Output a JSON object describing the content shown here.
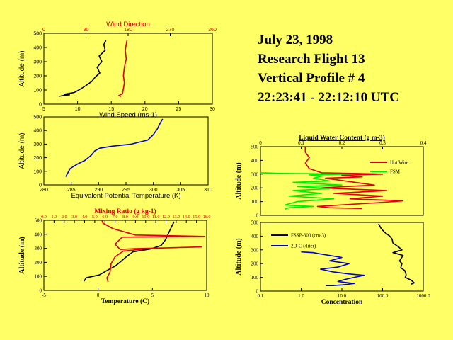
{
  "header": {
    "date": "July 23, 1998",
    "flight": "Research Flight 13",
    "profile": "Vertical Profile # 4",
    "time": "22:23:41 - 22:12:10 UTC"
  },
  "chart_data": [
    {
      "id": "wind",
      "type": "line",
      "title": "Wind Direction",
      "xlabel": "Wind Speed (ms-1)",
      "ylabel": "Altitude (m)",
      "xlim": [
        5,
        30
      ],
      "x_ticks": [
        "5",
        "10",
        "15",
        "20",
        "25",
        "30"
      ],
      "x2lim": [
        0,
        360
      ],
      "x2_ticks": [
        "0",
        "90",
        "180",
        "270",
        "360"
      ],
      "ylim": [
        0,
        500
      ],
      "y_ticks": [
        "0",
        "100",
        "200",
        "300",
        "400",
        "500"
      ],
      "series": [
        {
          "name": "Wind Speed",
          "color": "#000000",
          "axis": "x",
          "points": [
            [
              7.2,
              55
            ],
            [
              8.0,
              62
            ],
            [
              8.8,
              66
            ],
            [
              8.0,
              70
            ],
            [
              9.5,
              82
            ],
            [
              10.2,
              100
            ],
            [
              11.2,
              130
            ],
            [
              12.1,
              160
            ],
            [
              12.6,
              190
            ],
            [
              13.3,
              220
            ],
            [
              12.9,
              260
            ],
            [
              13.6,
              300
            ],
            [
              13.2,
              340
            ],
            [
              14.1,
              380
            ],
            [
              13.9,
              420
            ],
            [
              14.2,
              450
            ]
          ]
        },
        {
          "name": "Wind Direction",
          "color": "#dd0000",
          "axis": "x2",
          "points": [
            [
              165,
              55
            ],
            [
              160,
              60
            ],
            [
              168,
              75
            ],
            [
              170,
              110
            ],
            [
              172,
              150
            ],
            [
              170,
              200
            ],
            [
              172,
              260
            ],
            [
              176,
              320
            ],
            [
              174,
              380
            ],
            [
              177,
              440
            ],
            [
              178,
              455
            ]
          ]
        }
      ]
    },
    {
      "id": "theta",
      "type": "line",
      "xlabel": "Equivalent Potential Temperature (K)",
      "ylabel": "Altitude (m)",
      "xlim": [
        280,
        310
      ],
      "x_ticks": [
        "280",
        "285",
        "290",
        "295",
        "300",
        "305",
        "310"
      ],
      "ylim": [
        0,
        500
      ],
      "y_ticks": [
        "0",
        "100",
        "200",
        "300",
        "400",
        "500"
      ],
      "series": [
        {
          "name": "Theta-e",
          "color": "#0000cc",
          "points": [
            [
              284.0,
              60
            ],
            [
              284.4,
              90
            ],
            [
              284.8,
              120
            ],
            [
              286.0,
              150
            ],
            [
              287.5,
              180
            ],
            [
              288.7,
              220
            ],
            [
              289.3,
              250
            ],
            [
              290.2,
              270
            ],
            [
              292.5,
              285
            ],
            [
              296.0,
              300
            ],
            [
              299.0,
              330
            ],
            [
              300.0,
              370
            ],
            [
              300.7,
              410
            ],
            [
              301.2,
              450
            ],
            [
              301.7,
              485
            ]
          ]
        }
      ]
    },
    {
      "id": "temp_mix",
      "type": "line",
      "title": "Mixing Ratio (g kg-1)",
      "xlabel": "Temperature (C)",
      "ylabel": "Altitude (m)",
      "xlim": [
        -5,
        10
      ],
      "x_ticks": [
        "-5",
        "0",
        "5",
        "10"
      ],
      "x2lim": [
        0,
        16
      ],
      "x2_ticks": [
        "0.0",
        "1.0",
        "2.0",
        "3.0",
        "4.0",
        "5.0",
        "6.0",
        "7.0",
        "8.0",
        "9.0",
        "10.0",
        "11.0",
        "12.0",
        "13.0",
        "14.0",
        "15.0",
        "16.0"
      ],
      "ylim": [
        0,
        500
      ],
      "y_ticks": [
        "0",
        "100",
        "200",
        "300",
        "400",
        "500"
      ],
      "series": [
        {
          "name": "Temperature",
          "color": "#000000",
          "axis": "x",
          "points": [
            [
              -1.3,
              65
            ],
            [
              -1.1,
              90
            ],
            [
              0.1,
              110
            ],
            [
              1.0,
              150
            ],
            [
              1.6,
              175
            ],
            [
              2.0,
              200
            ],
            [
              2.6,
              240
            ],
            [
              3.2,
              275
            ],
            [
              4.8,
              295
            ],
            [
              5.8,
              320
            ],
            [
              6.2,
              360
            ],
            [
              6.5,
              410
            ],
            [
              6.8,
              460
            ],
            [
              7.0,
              490
            ]
          ]
        },
        {
          "name": "Mixing Ratio",
          "color": "#dd0000",
          "axis": "x2",
          "points": [
            [
              6.3,
              60
            ],
            [
              6.2,
              90
            ],
            [
              6.5,
              130
            ],
            [
              6.6,
              190
            ],
            [
              7.0,
              240
            ],
            [
              7.8,
              280
            ],
            [
              10.5,
              300
            ],
            [
              15.5,
              310
            ],
            [
              9.0,
              298
            ],
            [
              7.5,
              292
            ],
            [
              7.0,
              330
            ],
            [
              7.7,
              380
            ],
            [
              15.8,
              385
            ],
            [
              9.0,
              395
            ],
            [
              6.8,
              440
            ],
            [
              5.8,
              480
            ],
            [
              5.7,
              500
            ]
          ]
        }
      ]
    },
    {
      "id": "lwc",
      "type": "line",
      "title": "Liquid Water Content (g m-3)",
      "ylabel": "Altitude (m)",
      "x2lim": [
        0,
        0.4
      ],
      "x2_ticks": [
        "0",
        "0.1",
        "0.2",
        "0.3",
        "0.4"
      ],
      "ylim": [
        0,
        500
      ],
      "y_ticks": [
        "0",
        "100",
        "200",
        "300",
        "400",
        "500"
      ],
      "legend": [
        "Hot Wire",
        "FSM"
      ],
      "series": [
        {
          "name": "Hot Wire",
          "color": "#dd0000",
          "points": [
            [
              0.11,
              500
            ],
            [
              0.11,
              460
            ],
            [
              0.12,
              420
            ],
            [
              0.11,
              380
            ],
            [
              0.12,
              340
            ],
            [
              0.15,
              310
            ],
            [
              0.3,
              300
            ],
            [
              0.2,
              292
            ],
            [
              0.25,
              280
            ],
            [
              0.16,
              270
            ],
            [
              0.28,
              220
            ],
            [
              0.15,
              200
            ],
            [
              0.31,
              180
            ],
            [
              0.18,
              160
            ],
            [
              0.3,
              140
            ],
            [
              0.22,
              120
            ],
            [
              0.35,
              105
            ],
            [
              0.28,
              90
            ],
            [
              0.22,
              80
            ],
            [
              0.14,
              65
            ],
            [
              0.17,
              55
            ],
            [
              0.25,
              50
            ]
          ]
        },
        {
          "name": "FSM",
          "color": "#00ee00",
          "points": [
            [
              0.0,
              310
            ],
            [
              0.05,
              305
            ],
            [
              0.22,
              300
            ],
            [
              0.12,
              295
            ],
            [
              0.15,
              285
            ],
            [
              0.13,
              270
            ],
            [
              0.17,
              250
            ],
            [
              0.08,
              240
            ],
            [
              0.2,
              220
            ],
            [
              0.09,
              210
            ],
            [
              0.17,
              195
            ],
            [
              0.08,
              180
            ],
            [
              0.15,
              160
            ],
            [
              0.07,
              140
            ],
            [
              0.18,
              120
            ],
            [
              0.09,
              100
            ],
            [
              0.06,
              75
            ],
            [
              0.13,
              65
            ],
            [
              0.07,
              55
            ],
            [
              0.06,
              45
            ]
          ]
        }
      ]
    },
    {
      "id": "conc",
      "type": "line",
      "xlabel": "Concentration",
      "ylabel": "Altitude (m)",
      "xscale": "log",
      "xlim": [
        0.1,
        1000
      ],
      "x_ticks": [
        "0.1",
        "1.0",
        "10.0",
        "100.0",
        "1000.0"
      ],
      "ylim": [
        0,
        500
      ],
      "y_ticks": [
        "0",
        "100",
        "200",
        "300",
        "400",
        "500"
      ],
      "legend": [
        "FSSP-300 (cm-3)",
        "2D-C (/liter)"
      ],
      "series": [
        {
          "name": "FSSP-300 (cm-3)",
          "color": "#000000",
          "points": [
            [
              80,
              490
            ],
            [
              90,
              460
            ],
            [
              110,
              430
            ],
            [
              150,
              400
            ],
            [
              170,
              380
            ],
            [
              180,
              350
            ],
            [
              250,
              320
            ],
            [
              300,
              300
            ],
            [
              180,
              280
            ],
            [
              320,
              260
            ],
            [
              260,
              220
            ],
            [
              300,
              200
            ],
            [
              280,
              170
            ],
            [
              350,
              150
            ],
            [
              380,
              120
            ],
            [
              360,
              100
            ],
            [
              500,
              80
            ],
            [
              600,
              60
            ],
            [
              500,
              50
            ]
          ]
        },
        {
          "name": "2D-C (/liter)",
          "color": "#0000cc",
          "points": [
            [
              1.0,
              285
            ],
            [
              2.0,
              280
            ],
            [
              3.0,
              270
            ],
            [
              10,
              245
            ],
            [
              5,
              220
            ],
            [
              15,
              200
            ],
            [
              8,
              175
            ],
            [
              3,
              160
            ],
            [
              6,
              140
            ],
            [
              15,
              125
            ],
            [
              35,
              115
            ],
            [
              20,
              100
            ],
            [
              12,
              85
            ],
            [
              8,
              70
            ],
            [
              20,
              55
            ],
            [
              10,
              45
            ],
            [
              6,
              40
            ],
            [
              4,
              40
            ]
          ]
        }
      ]
    }
  ]
}
